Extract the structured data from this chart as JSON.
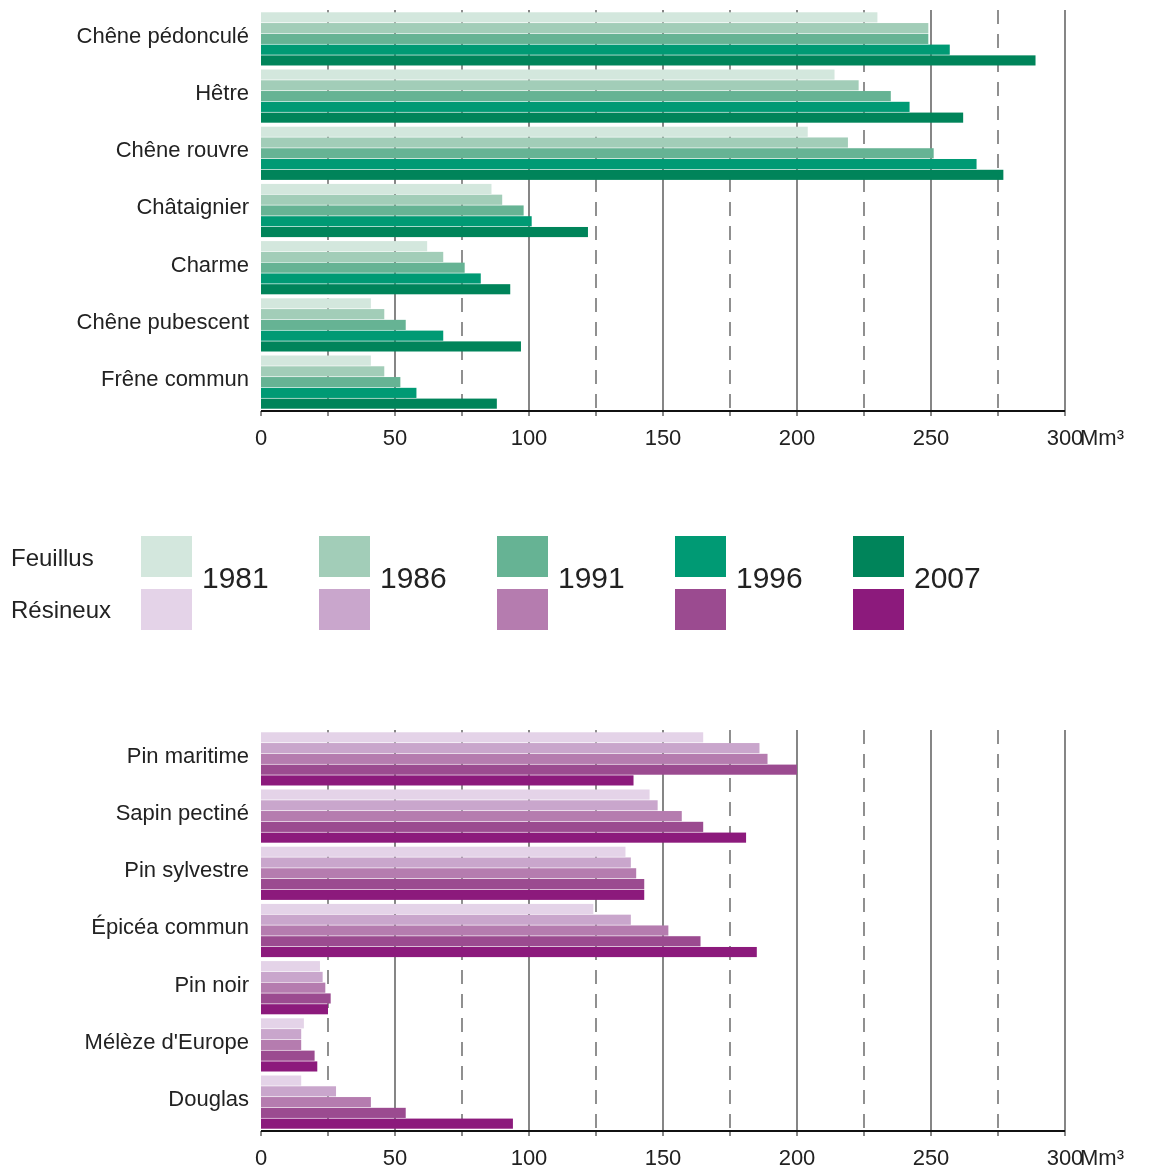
{
  "chart_data": [
    {
      "type": "bar",
      "orientation": "horizontal",
      "legend_title": "Feuillus",
      "xlabel": "Mm³",
      "categories": [
        "Chêne pédonculé",
        "Hêtre",
        "Chêne rouvre",
        "Châtaignier",
        "Charme",
        "Chêne pubescent",
        "Frêne commun"
      ],
      "xlim": [
        0,
        300
      ],
      "xticks": [
        0,
        {
          "value": 25,
          "label": null
        },
        50,
        {
          "value": 75,
          "label": null
        },
        100,
        {
          "value": 125,
          "label": null
        },
        150,
        {
          "value": 175,
          "label": null
        },
        200,
        {
          "value": 225,
          "label": null
        },
        250,
        {
          "value": 275,
          "label": null
        },
        300
      ],
      "grid": "x",
      "legend": "bottom",
      "series": [
        {
          "name": "1981",
          "color": "#d3e7dd",
          "values": [
            230,
            214,
            204,
            86,
            62,
            41,
            41
          ]
        },
        {
          "name": "1986",
          "color": "#a2cdb8",
          "values": [
            249,
            223,
            219,
            90,
            68,
            46,
            46
          ]
        },
        {
          "name": "1991",
          "color": "#66b394",
          "values": [
            249,
            235,
            251,
            98,
            76,
            54,
            52
          ]
        },
        {
          "name": "1996",
          "color": "#009a74",
          "values": [
            257,
            242,
            267,
            101,
            82,
            68,
            58
          ]
        },
        {
          "name": "2007",
          "color": "#00845a",
          "values": [
            289,
            262,
            277,
            122,
            93,
            97,
            88
          ]
        }
      ]
    },
    {
      "type": "bar",
      "orientation": "horizontal",
      "legend_title": "Résineux",
      "xlabel": "Mm³",
      "categories": [
        "Pin maritime",
        "Sapin pectiné",
        "Pin sylvestre",
        "Épicéa commun",
        "Pin noir",
        "Mélèze d'Europe",
        "Douglas"
      ],
      "xlim": [
        0,
        300
      ],
      "xticks": [
        0,
        {
          "value": 25,
          "label": null
        },
        50,
        {
          "value": 75,
          "label": null
        },
        100,
        {
          "value": 125,
          "label": null
        },
        150,
        {
          "value": 175,
          "label": null
        },
        200,
        {
          "value": 225,
          "label": null
        },
        250,
        {
          "value": 275,
          "label": null
        },
        300
      ],
      "grid": "x",
      "series": [
        {
          "color": "#e4d3e8",
          "values": [
            165,
            145,
            136,
            124,
            22,
            16,
            15
          ]
        },
        {
          "color": "#c9a6cc",
          "values": [
            186,
            148,
            138,
            138,
            23,
            15,
            28
          ]
        },
        {
          "color": "#b57caf",
          "values": [
            189,
            157,
            140,
            152,
            24,
            15,
            41
          ]
        },
        {
          "color": "#9b4b90",
          "values": [
            200,
            165,
            143,
            164,
            26,
            20,
            54
          ]
        },
        {
          "color": "#8c1a7c",
          "values": [
            139,
            181,
            143,
            185,
            25,
            21,
            94
          ]
        }
      ]
    }
  ]
}
